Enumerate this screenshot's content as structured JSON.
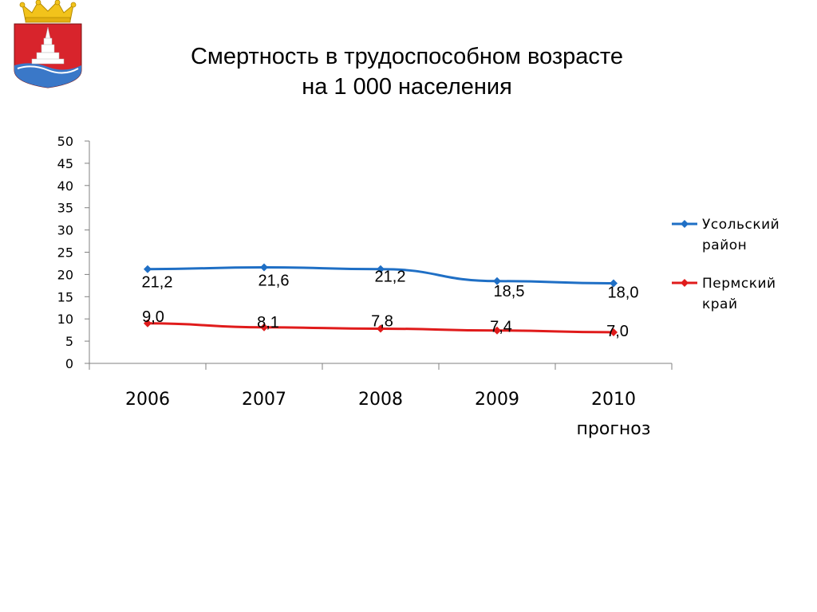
{
  "page": {
    "title_line1": "Смертность в трудоспособном возрасте",
    "title_line2": "на 1 000 населения",
    "emblem_icon": "coat-of-arms-icon"
  },
  "colors": {
    "series_1": "#1f6fc5",
    "series_2": "#e01b1b",
    "axis": "#808080",
    "emblem_red": "#d8242c",
    "emblem_blue": "#3a78c8",
    "emblem_gold": "#f2c31b"
  },
  "chart_data": {
    "type": "line",
    "categories": [
      "2006",
      "2007",
      "2008",
      "2009",
      "2010\nпрогноз"
    ],
    "category_lines": [
      [
        "2006"
      ],
      [
        "2007"
      ],
      [
        "2008"
      ],
      [
        "2009"
      ],
      [
        "2010",
        "прогноз"
      ]
    ],
    "series": [
      {
        "name": "Усольский район",
        "name_lines": [
          "Усольский",
          "район"
        ],
        "values": [
          21.2,
          21.6,
          21.2,
          18.5,
          18.0
        ],
        "labels": [
          "21,2",
          "21,6",
          "21,2",
          "18,5",
          "18,0"
        ]
      },
      {
        "name": "Пермский край",
        "name_lines": [
          "Пермский",
          "край"
        ],
        "values": [
          9.0,
          8.1,
          7.8,
          7.4,
          7.0
        ],
        "labels": [
          "9,0",
          "8,1",
          "7,8",
          "7,4",
          "7,0"
        ]
      }
    ],
    "ylim": [
      0,
      50
    ],
    "yticks": [
      0,
      5,
      10,
      15,
      20,
      25,
      30,
      35,
      40,
      45,
      50
    ],
    "grid": false,
    "legend": "right",
    "marker": "diamond"
  }
}
